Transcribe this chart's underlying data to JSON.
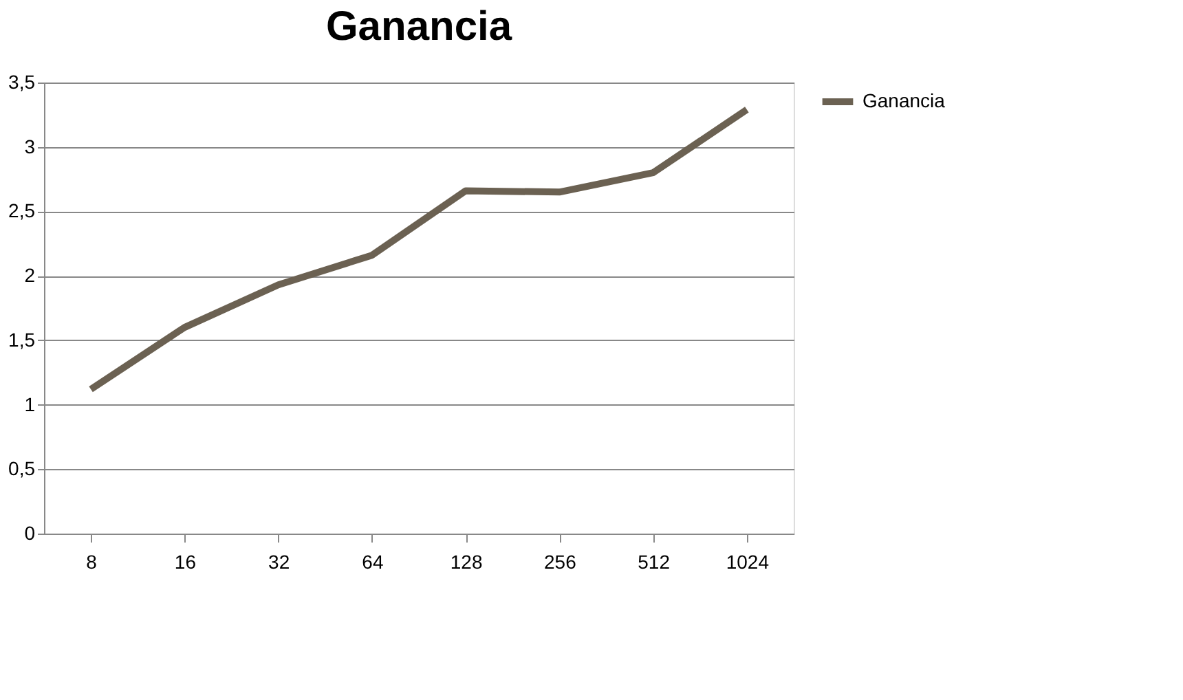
{
  "chart_data": {
    "type": "line",
    "title": "Ganancia",
    "categories": [
      "8",
      "16",
      "32",
      "64",
      "128",
      "256",
      "512",
      "1024"
    ],
    "series": [
      {
        "name": "Ganancia",
        "color": "#6b6152",
        "values": [
          1.12,
          1.6,
          1.93,
          2.16,
          2.66,
          2.65,
          2.8,
          3.29
        ]
      }
    ],
    "ylim": [
      0,
      3.5
    ],
    "yticks": [
      0,
      {
        "value": 0.5,
        "label": "0,5"
      },
      1,
      {
        "value": 1.5,
        "label": "1,5"
      },
      2,
      {
        "value": 2.5,
        "label": "2,5"
      },
      3,
      {
        "value": 3.5,
        "label": "3,5"
      }
    ],
    "grid": "y",
    "legend": "right",
    "marker": "none",
    "line_style": "solid"
  }
}
